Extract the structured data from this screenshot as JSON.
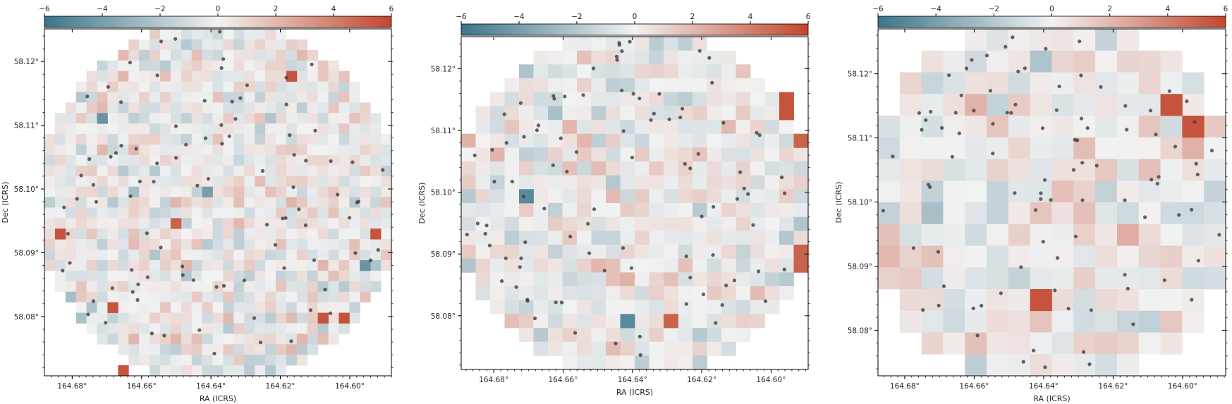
{
  "chart_data": [
    {
      "type": "heatmap",
      "title": "",
      "xlabel": "RA (ICRS)",
      "ylabel": "Dec (ICRS)",
      "xlim": [
        164.688,
        164.588
      ],
      "ylim": [
        58.0707,
        58.1251
      ],
      "x_ticks": [
        164.68,
        164.66,
        164.64,
        164.62,
        164.6
      ],
      "x_tick_labels": [
        "164.68°",
        "164.66°",
        "164.64°",
        "164.62°",
        "164.60°"
      ],
      "y_ticks": [
        58.08,
        58.09,
        58.1,
        58.11,
        58.12
      ],
      "y_tick_labels": [
        "58.08°",
        "58.09°",
        "58.10°",
        "58.11°",
        "58.12°"
      ],
      "grid_nx": 33,
      "grid_ny": 33,
      "grid_seed": 11,
      "grid_values_note": "",
      "extreme_cells": [
        {
          "ra": 164.671,
          "dec": 58.1116,
          "value": -4.5
        },
        {
          "ra": 164.6425,
          "dec": 58.1003,
          "value": -4.0
        },
        {
          "ra": 164.5965,
          "dec": 58.0876,
          "value": -4.5
        },
        {
          "ra": 164.6175,
          "dec": 58.1171,
          "value": 5.5
        },
        {
          "ra": 164.651,
          "dec": 58.0945,
          "value": 5.0
        },
        {
          "ra": 164.6835,
          "dec": 58.0931,
          "value": 5.5
        },
        {
          "ra": 164.6695,
          "dec": 58.0818,
          "value": 5.5
        },
        {
          "ra": 164.6075,
          "dec": 58.0804,
          "value": 5.5
        },
        {
          "ra": 164.6015,
          "dec": 58.079,
          "value": 5.5
        },
        {
          "ra": 164.6655,
          "dec": 58.072,
          "value": 5.5
        },
        {
          "ra": 164.5915,
          "dec": 58.0931,
          "value": 5.5
        }
      ],
      "colorbar": {
        "range": [
          -6,
          6
        ],
        "ticks": [
          -6,
          -4,
          -2,
          0,
          2,
          4,
          6
        ],
        "tick_labels": [
          "−6",
          "−4",
          "−2",
          "0",
          "2",
          "4",
          "6"
        ]
      },
      "points_seed": 101,
      "points_count": 95
    },
    {
      "type": "heatmap",
      "title": "",
      "xlabel": "RA (ICRS)",
      "ylabel": "Dec (ICRS)",
      "xlim": [
        164.6894,
        164.5893
      ],
      "ylim": [
        58.0713,
        58.1252
      ],
      "x_ticks": [
        164.68,
        164.66,
        164.64,
        164.62,
        164.6
      ],
      "x_tick_labels": [
        "164.68°",
        "164.66°",
        "164.64°",
        "164.62°",
        "164.60°"
      ],
      "y_ticks": [
        58.08,
        58.09,
        58.1,
        58.11,
        58.12
      ],
      "y_tick_labels": [
        "58.08°",
        "58.09°",
        "58.10°",
        "58.11°",
        "58.12°"
      ],
      "grid_nx": 24,
      "grid_ny": 24,
      "grid_seed": 23,
      "grid_values_note": "",
      "extreme_cells": [
        {
          "ra": 164.6705,
          "dec": 58.1002,
          "value": -5.0
        },
        {
          "ra": 164.6395,
          "dec": 58.0782,
          "value": -5.0
        },
        {
          "ra": 164.6275,
          "dec": 58.0782,
          "value": 5.0
        },
        {
          "ra": 164.5975,
          "dec": 58.1157,
          "value": 5.5
        },
        {
          "ra": 164.5935,
          "dec": 58.1135,
          "value": 5.5
        },
        {
          "ra": 164.5915,
          "dec": 58.109,
          "value": 5.0
        },
        {
          "ra": 164.5915,
          "dec": 58.0914,
          "value": 5.0
        },
        {
          "ra": 164.5915,
          "dec": 58.0892,
          "value": 5.0
        }
      ],
      "colorbar": {
        "range": [
          -6,
          6
        ],
        "ticks": [
          -6,
          -4,
          -2,
          0,
          2,
          4,
          6
        ],
        "tick_labels": [
          "−6",
          "−4",
          "−2",
          "0",
          "2",
          "4",
          "6"
        ]
      },
      "points_seed": 202,
      "points_count": 95
    },
    {
      "type": "heatmap",
      "title": "",
      "xlabel": "RA (ICRS)",
      "ylabel": "Dec (ICRS)",
      "xlim": [
        164.6877,
        164.5876
      ],
      "ylim": [
        58.0729,
        58.127
      ],
      "x_ticks": [
        164.68,
        164.66,
        164.64,
        164.62,
        164.6
      ],
      "x_tick_labels": [
        "164.68°",
        "164.66°",
        "164.64°",
        "164.62°",
        "164.60°"
      ],
      "y_ticks": [
        58.08,
        58.09,
        58.1,
        58.11,
        58.12
      ],
      "y_tick_labels": [
        "58.08°",
        "58.09°",
        "58.10°",
        "58.11°",
        "58.12°"
      ],
      "grid_nx": 16,
      "grid_ny": 16,
      "grid_seed": 37,
      "grid_values_note": "",
      "extreme_cells": [
        {
          "ra": 164.6015,
          "dec": 58.1137,
          "value": 5.5
        },
        {
          "ra": 164.5955,
          "dec": 58.1104,
          "value": 5.5
        },
        {
          "ra": 164.6385,
          "dec": 58.0852,
          "value": 5.5
        }
      ],
      "colorbar": {
        "range": [
          -6,
          6
        ],
        "ticks": [
          -6,
          -4,
          -2,
          0,
          2,
          4,
          6
        ],
        "tick_labels": [
          "−6",
          "−4",
          "−2",
          "0",
          "2",
          "4",
          "6"
        ]
      },
      "points_seed": 303,
      "points_count": 95
    }
  ],
  "colors": {
    "cmap_low": "#3b7489",
    "cmap_mid": "#f2f2f2",
    "cmap_high": "#c2462b",
    "point": "#3d3d3d",
    "axis": "#000000",
    "text": "#262626"
  }
}
